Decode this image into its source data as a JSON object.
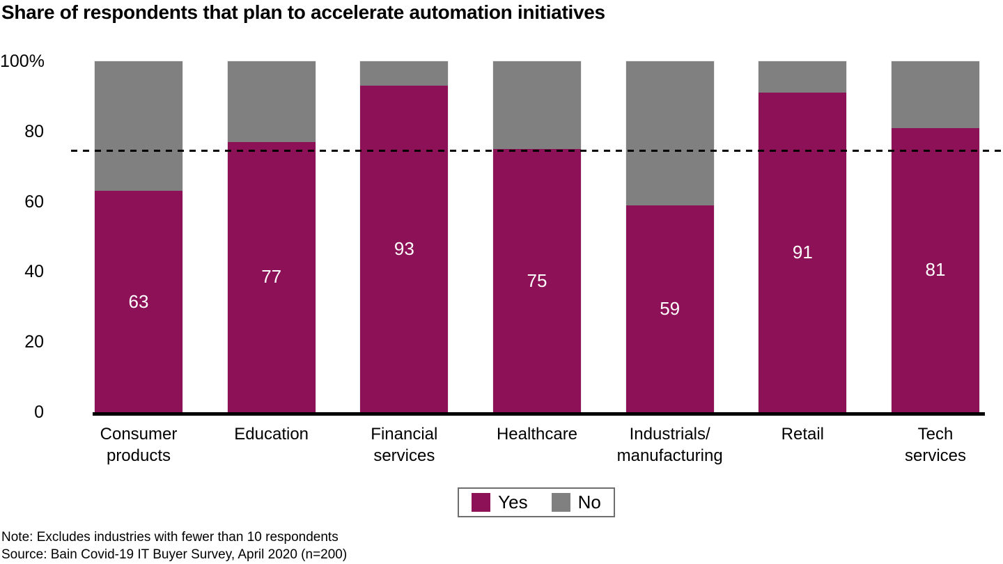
{
  "title": "Share of respondents that plan to accelerate automation initiatives",
  "note": "Note: Excludes industries with fewer than 10 respondents",
  "source": "Source: Bain Covid-19 IT Buyer Survey, April 2020 (n=200)",
  "colors": {
    "yes": "#8C1157",
    "no": "#808080",
    "axis": "#000000",
    "value_label": "#ffffff"
  },
  "legend": {
    "items": [
      {
        "label": "Yes",
        "color": "#8C1157"
      },
      {
        "label": "No",
        "color": "#808080"
      }
    ]
  },
  "chart_data": {
    "type": "bar",
    "stacked": true,
    "title": "Share of respondents that plan to accelerate automation initiatives",
    "categories": [
      "Consumer\nproducts",
      "Education",
      "Financial\nservices",
      "Healthcare",
      "Industrials/\nmanufacturing",
      "Retail",
      "Tech\nservices"
    ],
    "series": [
      {
        "name": "Yes",
        "color": "#8C1157",
        "values": [
          63,
          77,
          93,
          75,
          59,
          91,
          81
        ]
      },
      {
        "name": "No",
        "color": "#808080",
        "values": [
          37,
          23,
          7,
          25,
          41,
          9,
          19
        ]
      }
    ],
    "value_labels": [
      "63",
      "77",
      "93",
      "75",
      "59",
      "91",
      "81"
    ],
    "xlabel": "",
    "ylabel": "",
    "ylim": [
      0,
      100
    ],
    "yticks": [
      {
        "value": 100,
        "label": "100%"
      },
      {
        "value": 80,
        "label": "80"
      },
      {
        "value": 60,
        "label": "60"
      },
      {
        "value": 40,
        "label": "40"
      },
      {
        "value": 20,
        "label": "20"
      },
      {
        "value": 0,
        "label": "0"
      }
    ],
    "grid": false,
    "reference_line": {
      "value": 74.6,
      "style": "dashed",
      "color": "#000000"
    },
    "legend_position": "bottom"
  }
}
